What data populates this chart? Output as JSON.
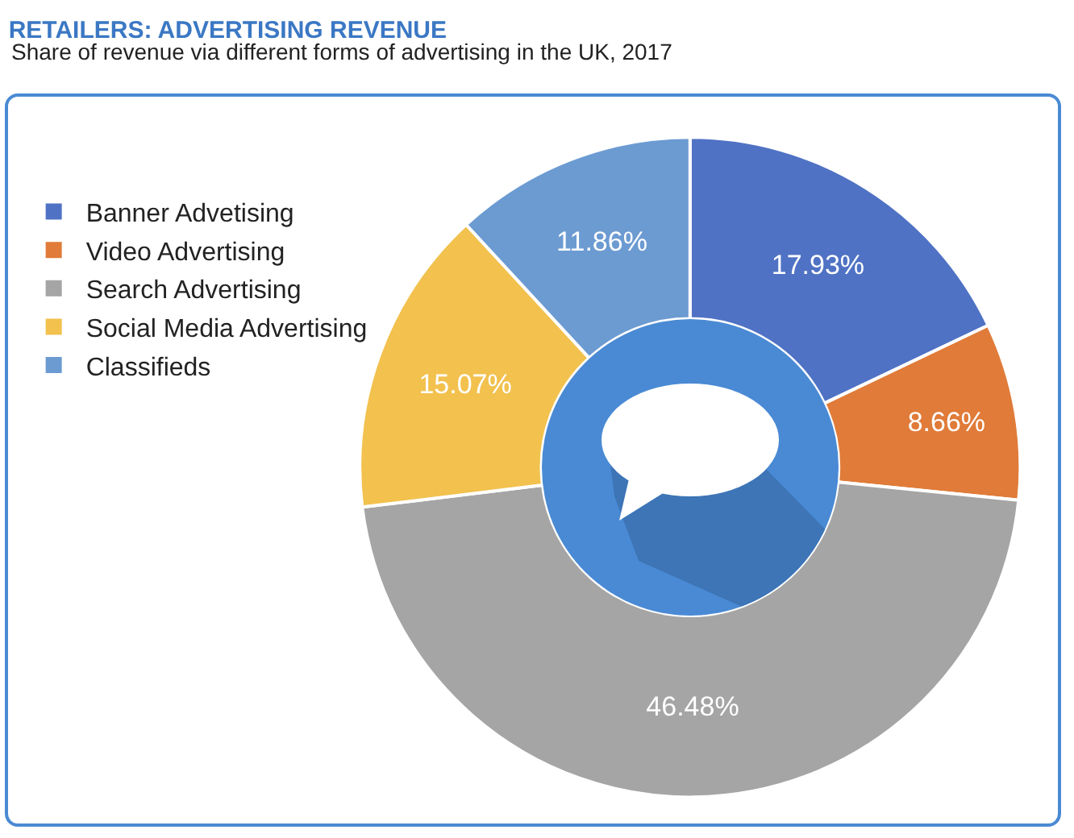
{
  "chart_data": {
    "type": "donut",
    "title": "RETAILERS: ADVERTISING REVENUE",
    "subtitle": "Share of revenue via different forms of advertising in the UK, 2017",
    "categories": [
      "Banner Advetising",
      "Video Advertising",
      "Search Advertising",
      "Social Media Advertising",
      "Classifieds"
    ],
    "values": [
      17.93,
      8.66,
      46.48,
      15.07,
      11.86
    ],
    "value_labels": [
      "17.93%",
      "8.66%",
      "46.48%",
      "15.07%",
      "11.86%"
    ],
    "colors": [
      "#4f72c4",
      "#e07b39",
      "#a5a5a5",
      "#f2c14e",
      "#6c9bd2"
    ],
    "legend": "left"
  }
}
